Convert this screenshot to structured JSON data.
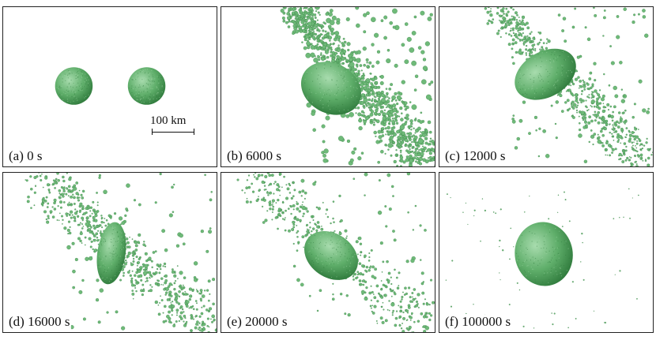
{
  "panels": [
    {
      "id": "a",
      "label": "(a) 0 s"
    },
    {
      "id": "b",
      "label": "(b) 6000 s"
    },
    {
      "id": "c",
      "label": "(c) 12000 s"
    },
    {
      "id": "d",
      "label": "(d) 16000 s"
    },
    {
      "id": "e",
      "label": "(e) 20000 s"
    },
    {
      "id": "f",
      "label": "(f) 100000 s"
    }
  ],
  "scale_bar": {
    "label": "100 km"
  },
  "colors": {
    "body": "#5fae6a",
    "body_dark": "#2f7a3c",
    "body_light": "#a8dcae",
    "particle": "#6fba79",
    "border": "#222222"
  }
}
